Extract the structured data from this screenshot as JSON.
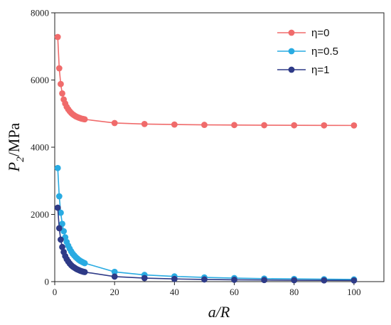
{
  "chart_data": {
    "type": "line",
    "xlabel": "a/R",
    "ylabel": {
      "main": "P",
      "sub": "2",
      "rest": "/MPa"
    },
    "xlim": [
      0,
      110
    ],
    "ylim": [
      0,
      8000
    ],
    "xticks": [
      0,
      20,
      40,
      60,
      80,
      100
    ],
    "yticks": [
      0,
      2000,
      4000,
      6000,
      8000
    ],
    "grid": false,
    "legend_position": "top-right",
    "x": [
      1,
      1.5,
      2,
      2.5,
      3,
      3.5,
      4,
      4.5,
      5,
      5.5,
      6,
      6.5,
      7,
      7.5,
      8,
      8.5,
      9,
      9.5,
      10,
      20,
      30,
      40,
      50,
      60,
      70,
      80,
      90,
      100
    ],
    "series": [
      {
        "name": "η=0",
        "color": "#f06b6b",
        "values": [
          7280,
          6350,
          5880,
          5600,
          5420,
          5300,
          5200,
          5130,
          5070,
          5020,
          4980,
          4950,
          4920,
          4900,
          4880,
          4865,
          4850,
          4840,
          4830,
          4720,
          4690,
          4675,
          4665,
          4660,
          4655,
          4652,
          4650,
          4648
        ]
      },
      {
        "name": "η=0.5",
        "color": "#29abe2",
        "values": [
          3380,
          2540,
          2050,
          1720,
          1500,
          1320,
          1180,
          1070,
          980,
          900,
          830,
          780,
          730,
          690,
          650,
          620,
          595,
          570,
          550,
          290,
          200,
          155,
          125,
          105,
          90,
          80,
          72,
          65
        ]
      },
      {
        "name": "η=1",
        "color": "#2e3a87",
        "values": [
          2200,
          1590,
          1250,
          1030,
          880,
          760,
          670,
          600,
          540,
          490,
          450,
          420,
          390,
          365,
          345,
          325,
          310,
          295,
          285,
          150,
          105,
          80,
          65,
          55,
          48,
          42,
          38,
          35
        ]
      }
    ]
  }
}
